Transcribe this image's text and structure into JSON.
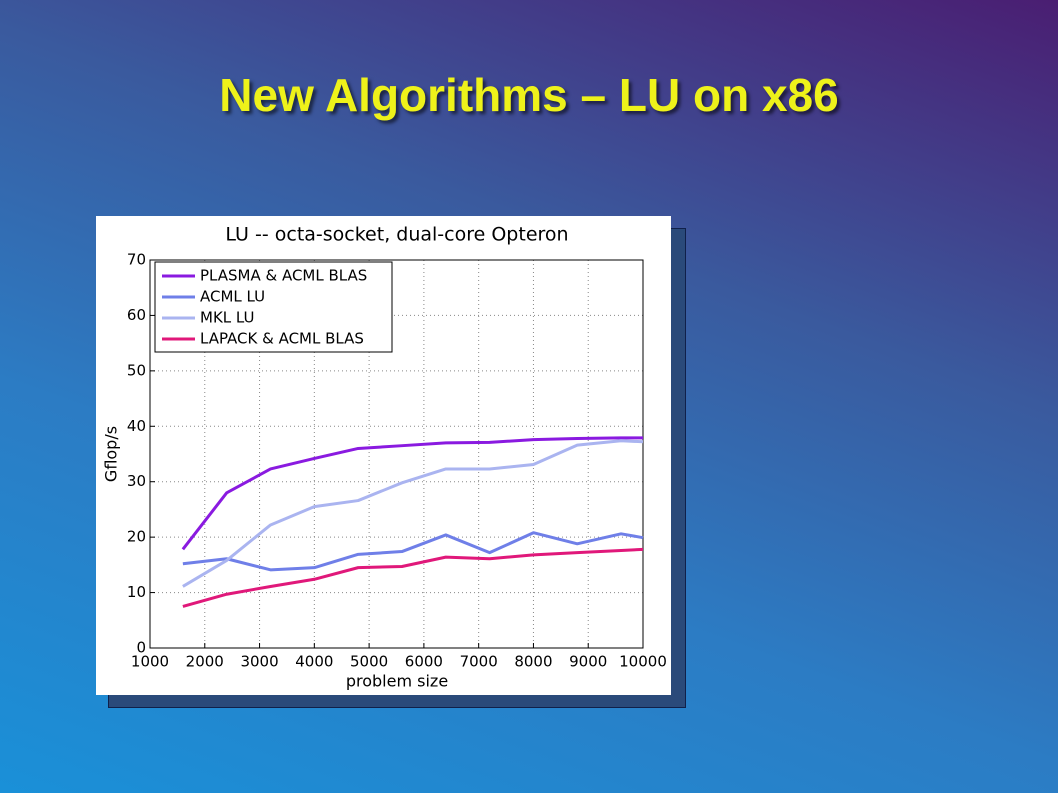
{
  "title": "New Algorithms – LU on x86",
  "chart_data": {
    "type": "line",
    "title": "LU -- octa-socket, dual-core Opteron",
    "x_label": "problem size",
    "y_label": "Gflop/s",
    "x": [
      1600,
      2400,
      3200,
      4000,
      4800,
      5600,
      6400,
      7200,
      8000,
      8800,
      9600,
      10000
    ],
    "series": [
      {
        "name": "PLASMA & ACML BLAS",
        "color": "#8a1ae0",
        "values": [
          17.8,
          28,
          32.3,
          34.2,
          36,
          36.5,
          37,
          37.1,
          37.6,
          37.8,
          37.9,
          37.9
        ]
      },
      {
        "name": "ACML LU",
        "color": "#6f7fe8",
        "values": [
          15.2,
          16.1,
          14.1,
          14.5,
          16.9,
          17.4,
          20.4,
          17.2,
          20.8,
          18.8,
          20.6,
          19.9
        ]
      },
      {
        "name": "MKL LU",
        "color": "#aab4f0",
        "values": [
          11.1,
          15.8,
          22.2,
          25.5,
          26.6,
          29.8,
          32.3,
          32.3,
          33.1,
          36.6,
          37.4,
          37.2
        ]
      },
      {
        "name": "LAPACK & ACML BLAS",
        "color": "#e0187a",
        "values": [
          7.5,
          9.7,
          11.1,
          12.4,
          14.5,
          14.7,
          16.4,
          16.1,
          16.8,
          17.2,
          17.6,
          17.8
        ]
      }
    ],
    "xlim": [
      1000,
      10000
    ],
    "xticks": [
      1000,
      2000,
      3000,
      4000,
      5000,
      6000,
      7000,
      8000,
      9000,
      10000
    ],
    "ylim": [
      0,
      70
    ],
    "yticks": [
      0,
      10,
      20,
      30,
      40,
      50,
      60,
      70
    ],
    "grid": true,
    "legend": "upper left"
  }
}
